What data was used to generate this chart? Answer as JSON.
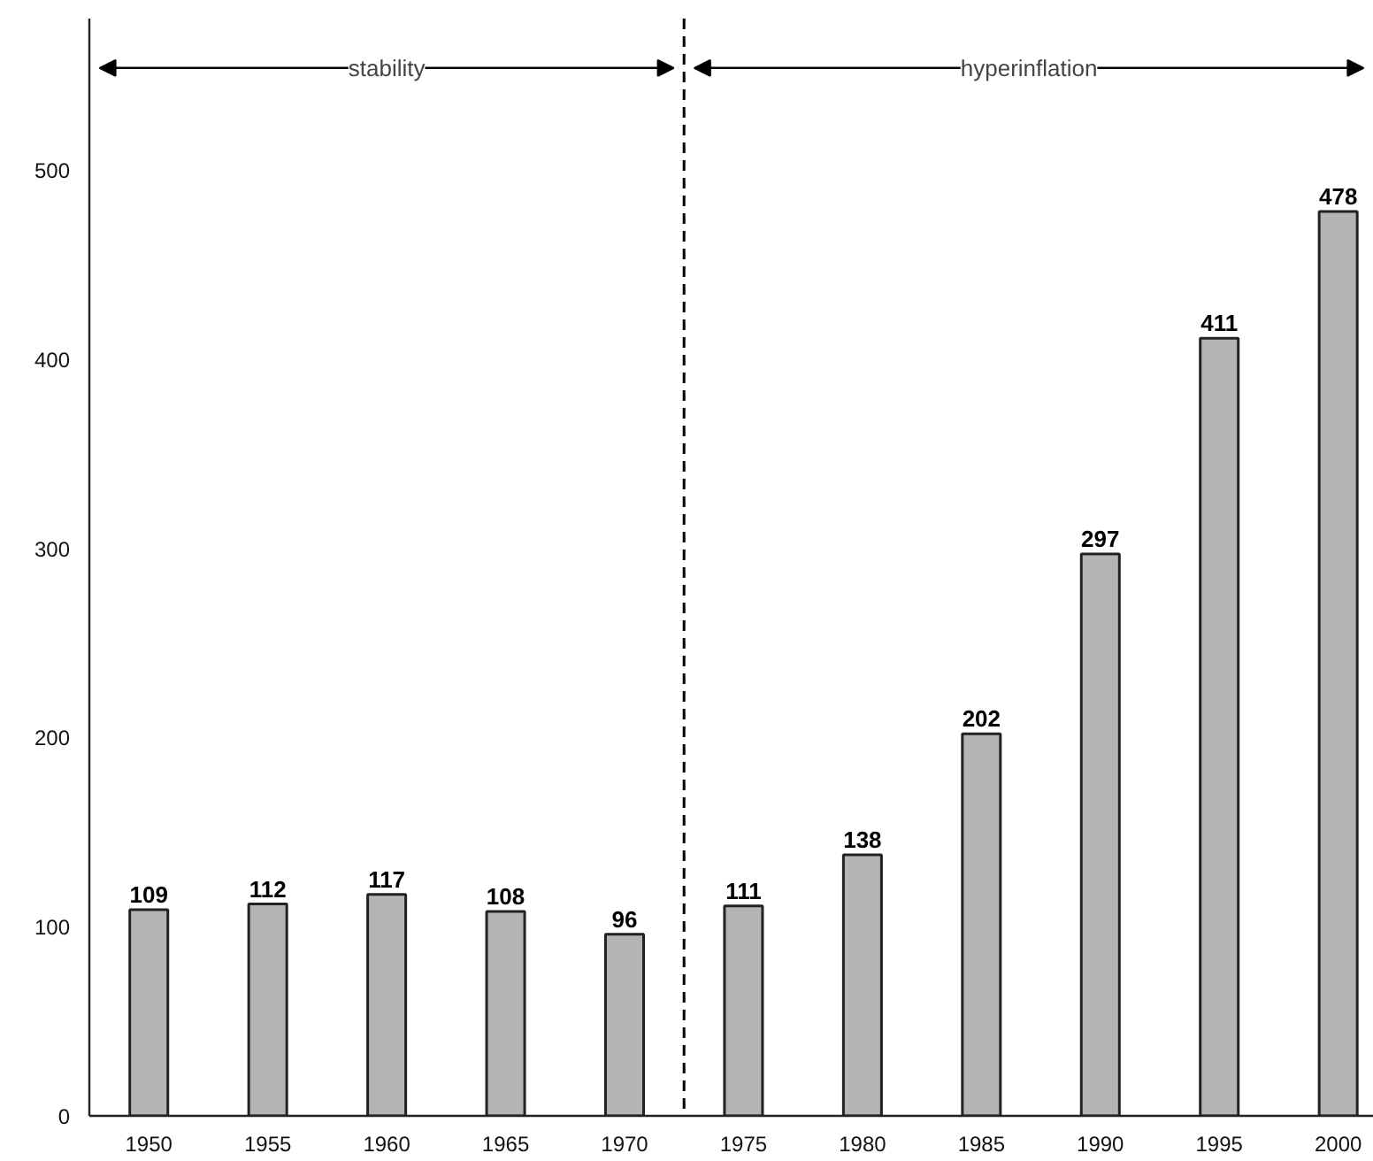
{
  "chart_data": {
    "type": "bar",
    "x": [
      1950,
      1955,
      1960,
      1965,
      1970,
      1975,
      1980,
      1985,
      1990,
      1995,
      2000
    ],
    "values": [
      109,
      112,
      117,
      108,
      96,
      111,
      138,
      202,
      297,
      411,
      478
    ],
    "color": "#b4b4b4",
    "data_labels": true,
    "xlim": [
      1947.5,
      2001.5
    ],
    "xticks": [
      1950,
      1955,
      1960,
      1965,
      1970,
      1975,
      1980,
      1985,
      1990,
      1995,
      2000
    ],
    "ylim": [
      0,
      580
    ],
    "yticks": [
      0,
      100,
      200,
      300,
      400,
      500
    ],
    "grid": false,
    "ref_lines": [
      {
        "axis": "x",
        "value": 1972.5,
        "line_style": "dashed",
        "color": "#000000"
      }
    ],
    "annotations": [
      "stability",
      "hyperinflation"
    ]
  }
}
